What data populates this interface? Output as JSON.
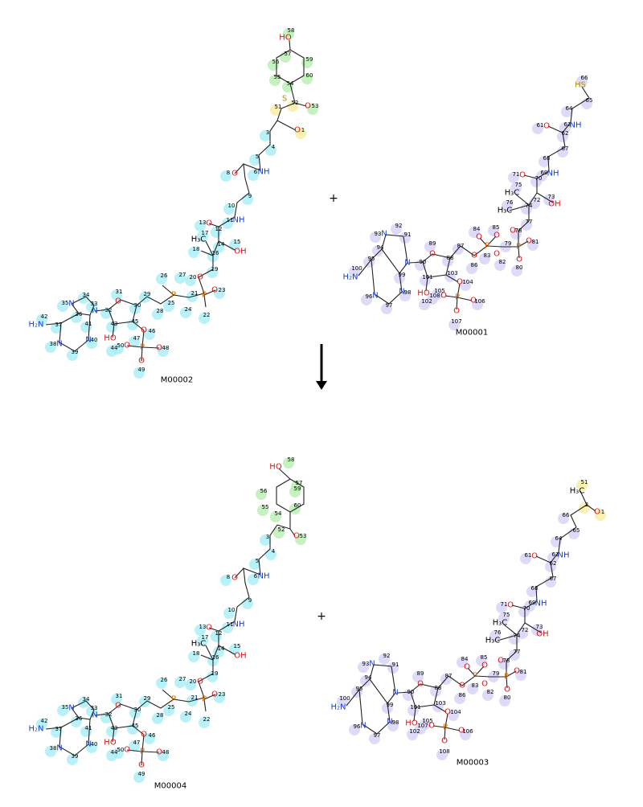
{
  "molecules": [
    {
      "id": "M00002",
      "atoms": [
        "58",
        "HO",
        "57",
        "56",
        "59",
        "55",
        "60",
        "54",
        "52",
        "51",
        "S",
        "O",
        "53",
        "O",
        "1",
        "3",
        "4",
        "5",
        "6",
        "NH",
        "8",
        "O",
        "9",
        "10",
        "11",
        "NH",
        "13",
        "O",
        "12",
        "17",
        "H₃C",
        "14",
        "15",
        "OH",
        "16",
        "18",
        "19",
        "20",
        "O",
        "26",
        "27",
        "21",
        "O",
        "23",
        "P",
        "P",
        "25",
        "24",
        "28",
        "22",
        "31",
        "29",
        "30",
        "O",
        "32",
        "34",
        "33",
        "35",
        "N",
        "N",
        "36",
        "37",
        "42",
        "H₂N",
        "41",
        "43",
        "45",
        "38",
        "N",
        "N",
        "40",
        "39",
        "O",
        "46",
        "HO",
        "44",
        "47",
        "50",
        "O",
        "P",
        "O",
        "48",
        "O",
        "49"
      ]
    },
    {
      "id": "M00001",
      "atoms": [
        "66",
        "HS",
        "65",
        "64",
        "63",
        "NH",
        "61",
        "O",
        "62",
        "67",
        "68",
        "69",
        "NH",
        "71",
        "O",
        "70",
        "75",
        "H₃C",
        "72",
        "73",
        "OH",
        "74",
        "76",
        "H₃C",
        "77",
        "O",
        "78",
        "84",
        "85",
        "O",
        "O",
        "P",
        "P",
        "79",
        "O",
        "81",
        "83",
        "O",
        "O",
        "82",
        "86",
        "O",
        "80",
        "87",
        "88",
        "89",
        "O",
        "90",
        "92",
        "91",
        "N",
        "93",
        "N",
        "94",
        "95",
        "100",
        "H₂N",
        "99",
        "101",
        "103",
        "96",
        "N",
        "N",
        "98",
        "97",
        "O",
        "104",
        "HO",
        "102",
        "108",
        "105",
        "O",
        "P",
        "O",
        "106",
        "O",
        "107"
      ]
    },
    {
      "id": "M00004",
      "atoms": [
        "58",
        "HO",
        "57",
        "56",
        "59",
        "55",
        "60",
        "54",
        "52",
        "O",
        "53",
        "3",
        "4",
        "5",
        "6",
        "NH",
        "8",
        "O",
        "9",
        "10",
        "11",
        "NH",
        "13",
        "O",
        "12",
        "17",
        "H₃C",
        "14",
        "15",
        "OH",
        "16",
        "18",
        "19",
        "20",
        "O",
        "26",
        "27",
        "21",
        "O",
        "23",
        "P",
        "P",
        "25",
        "24",
        "28",
        "22",
        "31",
        "29",
        "30",
        "O",
        "32",
        "34",
        "33",
        "35",
        "N",
        "N",
        "36",
        "37",
        "42",
        "H₂N",
        "41",
        "43",
        "45",
        "38",
        "N",
        "N",
        "40",
        "39",
        "O",
        "46",
        "HO",
        "44",
        "47",
        "50",
        "O",
        "P",
        "O",
        "48",
        "O",
        "49"
      ]
    },
    {
      "id": "M00003",
      "atoms": [
        "51",
        "H₃C",
        "2",
        "O",
        "1",
        "66",
        "65",
        "64",
        "63",
        "NH",
        "61",
        "O",
        "62",
        "67",
        "68",
        "69",
        "NH",
        "71",
        "O",
        "70",
        "75",
        "H₃C",
        "72",
        "73",
        "OH",
        "74",
        "76",
        "H₃C",
        "77",
        "O",
        "78",
        "84",
        "85",
        "O",
        "O",
        "P",
        "P",
        "79",
        "O",
        "81",
        "83",
        "O",
        "O",
        "82",
        "86",
        "O",
        "80",
        "87",
        "88",
        "89",
        "O",
        "90",
        "92",
        "91",
        "N",
        "93",
        "N",
        "94",
        "95",
        "100",
        "H₂N",
        "99",
        "101",
        "103",
        "96",
        "N",
        "N",
        "98",
        "97",
        "O",
        "104",
        "HO",
        "102",
        "107",
        "105",
        "O",
        "P",
        "O",
        "106",
        "O",
        "108"
      ]
    }
  ],
  "operators": [
    "+",
    "+"
  ]
}
